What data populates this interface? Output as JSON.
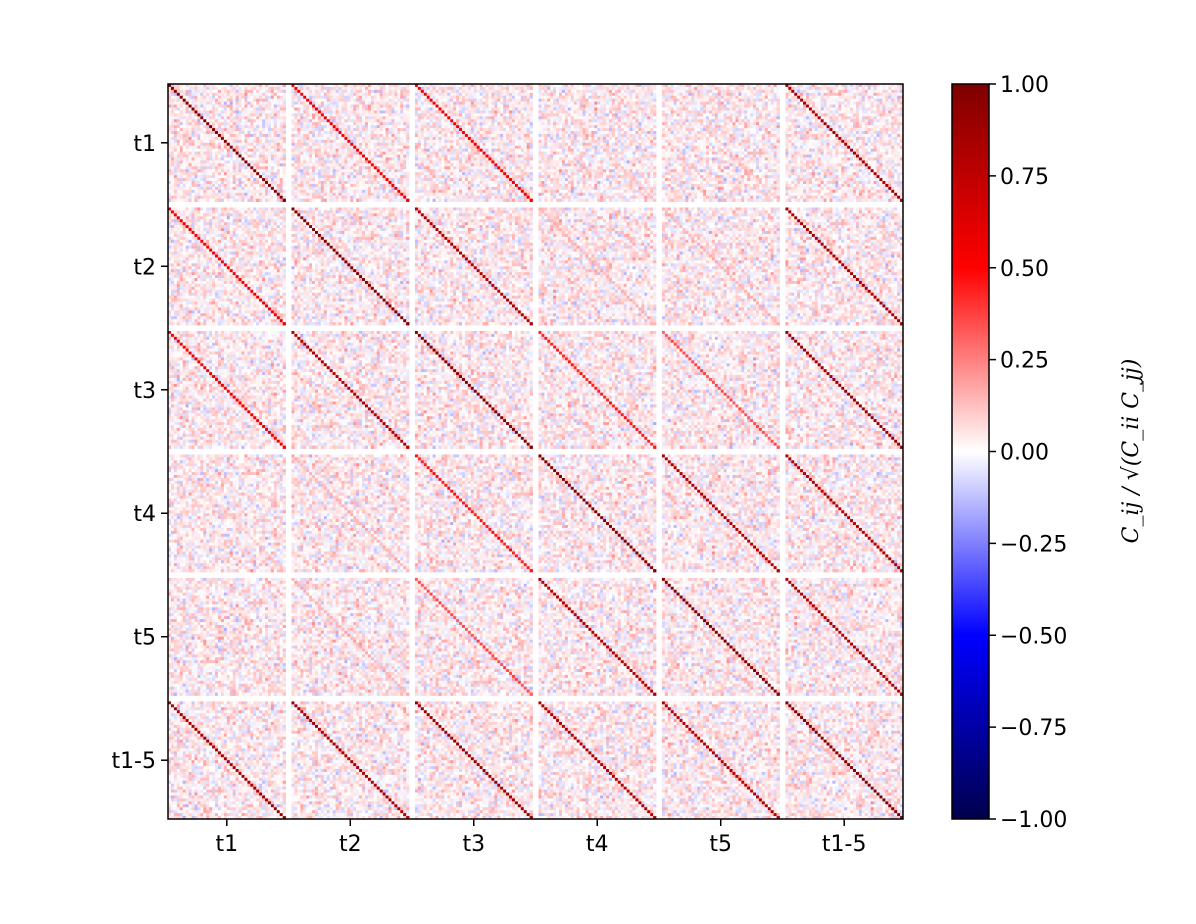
{
  "chart_data": {
    "type": "heatmap",
    "title": "",
    "row_labels": [
      "t1",
      "t2",
      "t3",
      "t4",
      "t5",
      "t1-5"
    ],
    "col_labels": [
      "t1",
      "t2",
      "t3",
      "t4",
      "t5",
      "t1-5"
    ],
    "pixels_per_block": 40,
    "diagonal_correlation": [
      [
        1.0,
        0.55,
        0.55,
        0.1,
        0.1,
        0.85
      ],
      [
        0.55,
        1.0,
        0.8,
        0.15,
        0.15,
        0.85
      ],
      [
        0.55,
        0.8,
        1.0,
        0.45,
        0.35,
        0.9
      ],
      [
        0.1,
        0.15,
        0.45,
        1.0,
        0.8,
        0.8
      ],
      [
        0.1,
        0.15,
        0.35,
        0.8,
        1.0,
        0.8
      ],
      [
        0.85,
        0.85,
        0.9,
        0.8,
        0.8,
        1.0
      ]
    ],
    "off_diagonal_noise": "weak random correlations, mostly between -0.15 and 0.15",
    "colormap": "seismic",
    "clim": [
      -1.0,
      1.0
    ],
    "colorbar": {
      "label": "C_ij / √(C_ii C_jj)",
      "ticks": [
        "1.00",
        "0.75",
        "0.50",
        "0.25",
        "0.00",
        "−0.25",
        "−0.50",
        "−0.75",
        "−1.00"
      ]
    }
  },
  "colors": {
    "negative_extreme": "#00004c",
    "negative": "#0000ff",
    "zero": "#ffffff",
    "positive": "#ff0000",
    "positive_extreme": "#7f0000"
  }
}
